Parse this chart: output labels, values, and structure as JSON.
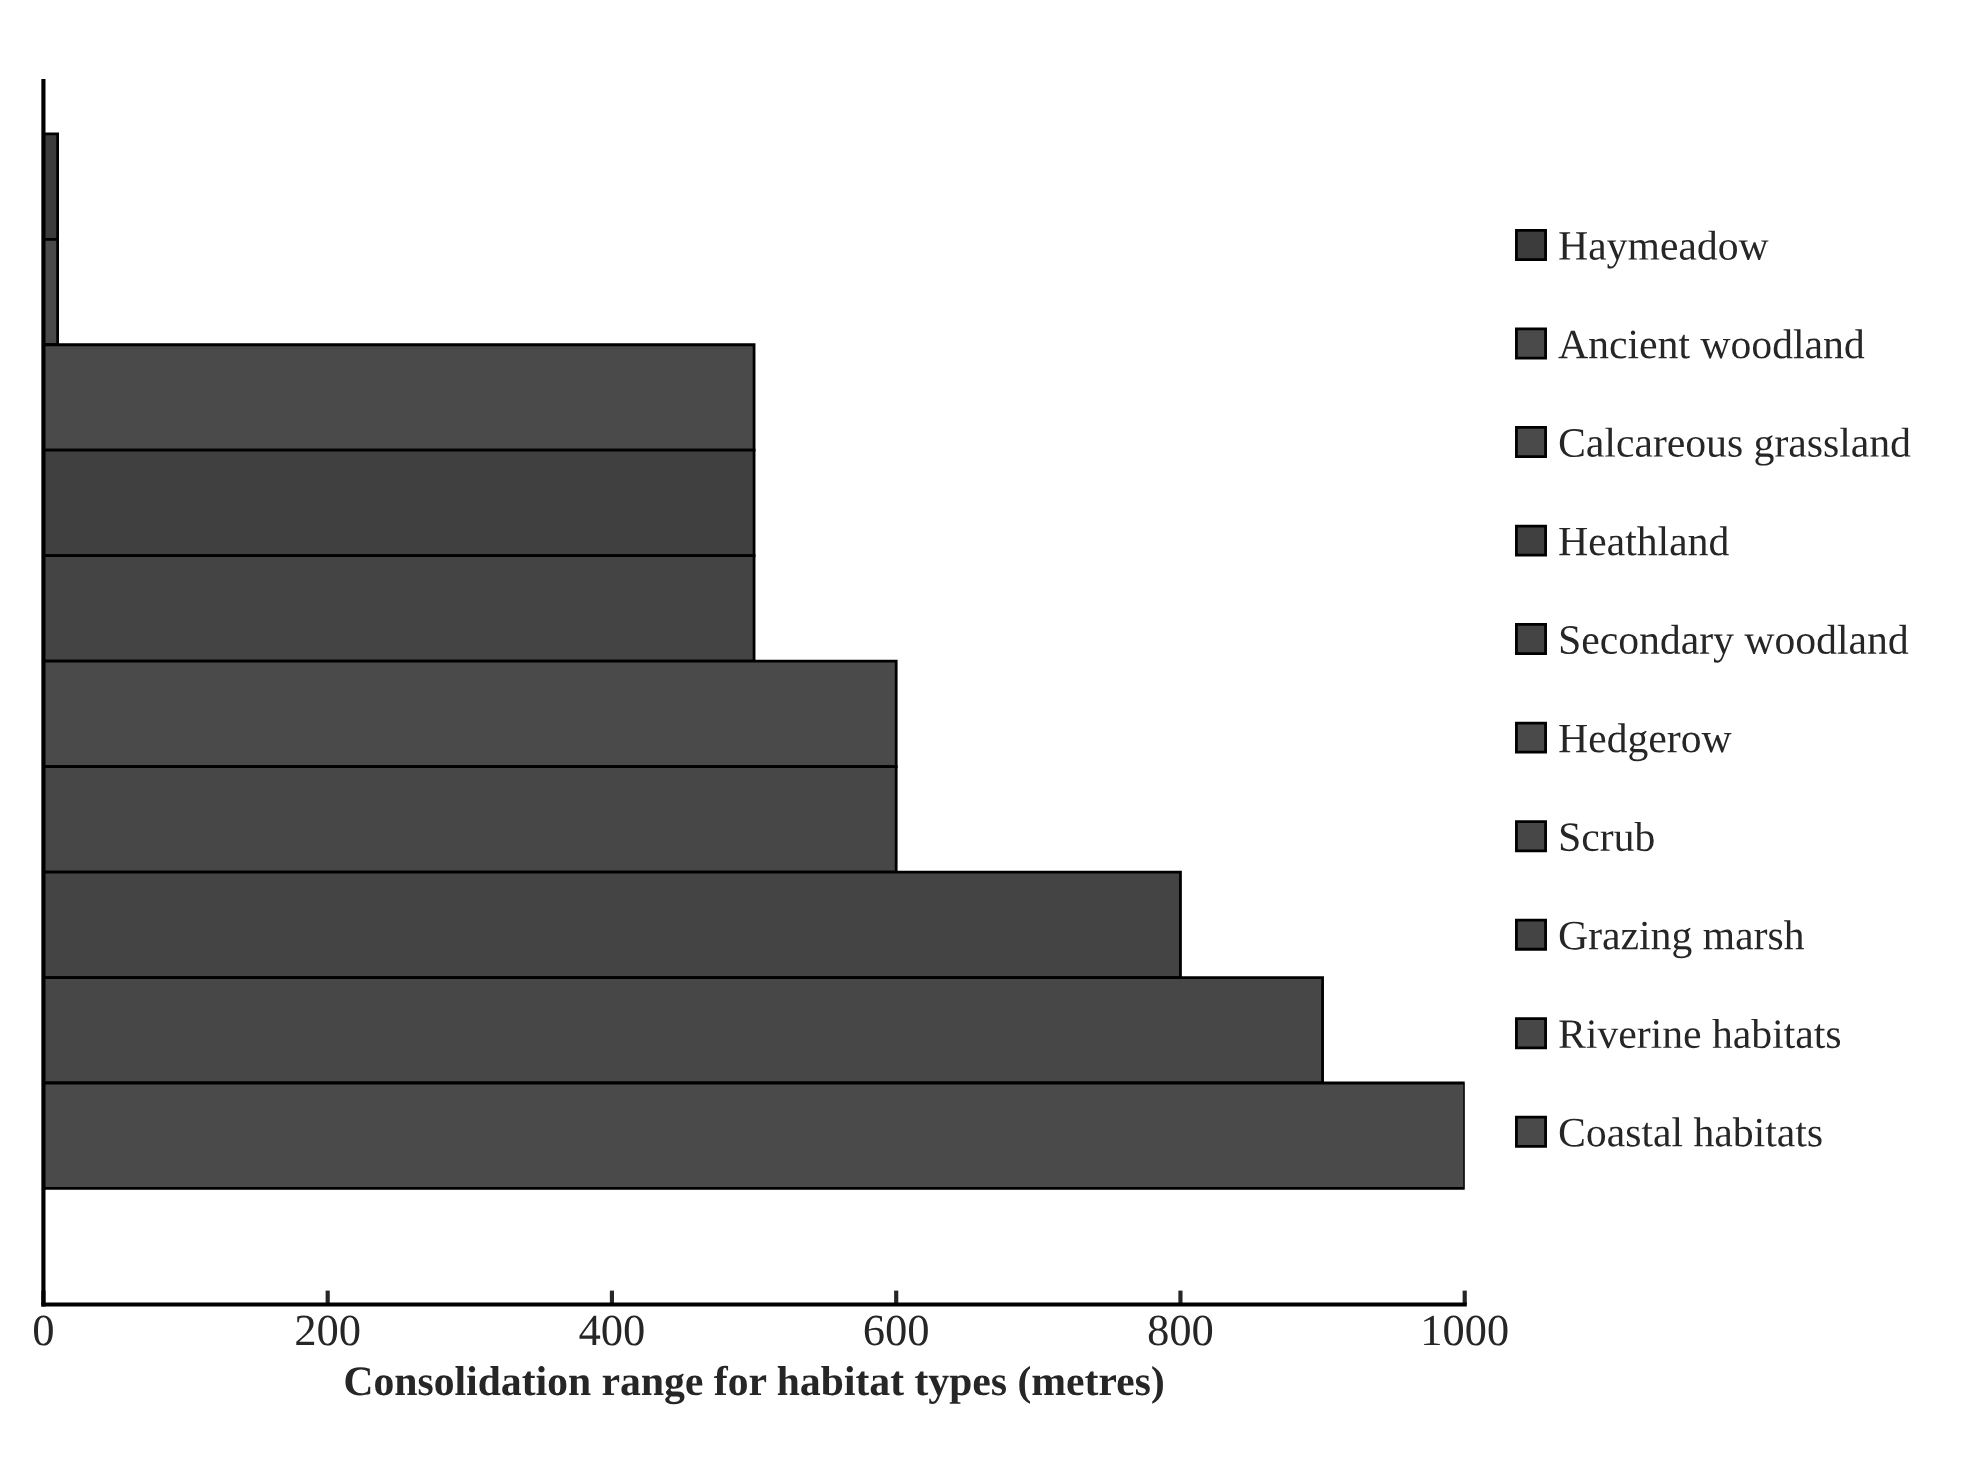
{
  "chart_data": {
    "type": "bar",
    "orientation": "horizontal",
    "stacked": true,
    "xlabel": "Consolidation range for habitat types (metres)",
    "categories": [
      null,
      null,
      null,
      null,
      null,
      null,
      null,
      null,
      null,
      null
    ],
    "series": [
      {
        "name": "Haymeadow",
        "color": "#3c3c3c",
        "values": [
          10,
          null,
          null,
          null,
          null,
          null,
          null,
          null,
          null,
          null
        ]
      },
      {
        "name": "Ancient woodland",
        "color": "#4a4a4a",
        "values": [
          null,
          10,
          null,
          null,
          null,
          null,
          null,
          null,
          null,
          null
        ]
      },
      {
        "name": "Calcareous grassland",
        "color": "#4a4a4a",
        "values": [
          null,
          null,
          500,
          null,
          null,
          null,
          null,
          null,
          null,
          null
        ]
      },
      {
        "name": "Heathland",
        "color": "#404040",
        "values": [
          null,
          null,
          null,
          500,
          null,
          null,
          null,
          null,
          null,
          null
        ]
      },
      {
        "name": "Secondary woodland",
        "color": "#444444",
        "values": [
          null,
          null,
          null,
          null,
          500,
          null,
          null,
          null,
          null,
          null
        ]
      },
      {
        "name": "Hedgerow",
        "color": "#4a4a4a",
        "values": [
          null,
          null,
          null,
          null,
          null,
          600,
          null,
          null,
          null,
          null
        ]
      },
      {
        "name": "Scrub",
        "color": "#474747",
        "values": [
          null,
          null,
          null,
          null,
          null,
          null,
          600,
          null,
          null,
          null
        ]
      },
      {
        "name": "Grazing marsh",
        "color": "#444444",
        "values": [
          null,
          null,
          null,
          null,
          null,
          null,
          null,
          800,
          null,
          null
        ]
      },
      {
        "name": "Riverine habitats",
        "color": "#474747",
        "values": [
          null,
          null,
          null,
          null,
          null,
          null,
          null,
          null,
          900,
          null
        ]
      },
      {
        "name": "Coastal habitats",
        "color": "#4a4a4a",
        "values": [
          null,
          null,
          null,
          null,
          null,
          null,
          null,
          null,
          null,
          1000
        ]
      }
    ],
    "xlim": [
      0,
      1000
    ],
    "xticks": [
      0,
      200,
      400,
      600,
      800,
      1000
    ],
    "tick_labels": "x",
    "legend": "right",
    "grid": false
  }
}
